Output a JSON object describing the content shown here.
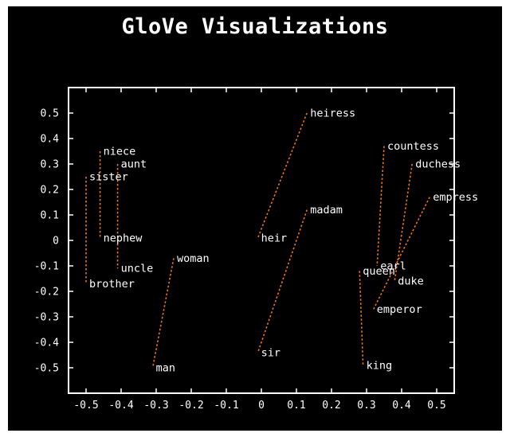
{
  "chart_data": {
    "type": "scatter",
    "title": "GloVe Visualizations",
    "xlim": [
      -0.55,
      0.55
    ],
    "ylim": [
      -0.6,
      0.6
    ],
    "x_ticks": [
      -0.5,
      -0.4,
      -0.3,
      -0.2,
      -0.1,
      0,
      0.1,
      0.2,
      0.3,
      0.4,
      0.5
    ],
    "x_tick_labels": [
      "-0.5",
      "-0.4",
      "-0.3",
      "-0.2",
      "-0.1",
      "0",
      "0.1",
      "0.2",
      "0.3",
      "0.4",
      "0.5"
    ],
    "y_ticks": [
      0.5,
      0.4,
      0.3,
      0.2,
      0.1,
      0,
      -0.1,
      -0.2,
      -0.3,
      -0.4,
      -0.5
    ],
    "y_tick_labels": [
      "0.5",
      "0.4",
      "0.3",
      "0.2",
      "0.1",
      "0",
      "-0.1",
      "-0.2",
      "-0.3",
      "-0.4",
      "-0.5"
    ],
    "grid": false,
    "colors": {
      "background": "#000000",
      "axes": "#ffffff",
      "pair_line": "#e8741c",
      "text": "#ffffff"
    },
    "points": [
      {
        "label": "heiress",
        "x": 0.13,
        "y": 0.5
      },
      {
        "label": "heir",
        "x": -0.01,
        "y": 0.01
      },
      {
        "label": "madam",
        "x": 0.13,
        "y": 0.12
      },
      {
        "label": "sir",
        "x": -0.01,
        "y": -0.44
      },
      {
        "label": "niece",
        "x": -0.46,
        "y": 0.35
      },
      {
        "label": "nephew",
        "x": -0.46,
        "y": 0.01
      },
      {
        "label": "aunt",
        "x": -0.41,
        "y": 0.3
      },
      {
        "label": "uncle",
        "x": -0.41,
        "y": -0.11
      },
      {
        "label": "sister",
        "x": -0.5,
        "y": 0.25
      },
      {
        "label": "brother",
        "x": -0.5,
        "y": -0.17
      },
      {
        "label": "woman",
        "x": -0.25,
        "y": -0.07
      },
      {
        "label": "man",
        "x": -0.31,
        "y": -0.5
      },
      {
        "label": "countess",
        "x": 0.35,
        "y": 0.37
      },
      {
        "label": "earl",
        "x": 0.33,
        "y": -0.1
      },
      {
        "label": "duchess",
        "x": 0.43,
        "y": 0.3
      },
      {
        "label": "duke",
        "x": 0.38,
        "y": -0.16
      },
      {
        "label": "empress",
        "x": 0.48,
        "y": 0.17
      },
      {
        "label": "emperor",
        "x": 0.32,
        "y": -0.27
      },
      {
        "label": "queen",
        "x": 0.28,
        "y": -0.12
      },
      {
        "label": "king",
        "x": 0.29,
        "y": -0.49
      }
    ],
    "pairs": [
      [
        "heiress",
        "heir"
      ],
      [
        "madam",
        "sir"
      ],
      [
        "niece",
        "nephew"
      ],
      [
        "aunt",
        "uncle"
      ],
      [
        "sister",
        "brother"
      ],
      [
        "woman",
        "man"
      ],
      [
        "countess",
        "earl"
      ],
      [
        "duchess",
        "duke"
      ],
      [
        "empress",
        "emperor"
      ],
      [
        "queen",
        "king"
      ]
    ]
  }
}
